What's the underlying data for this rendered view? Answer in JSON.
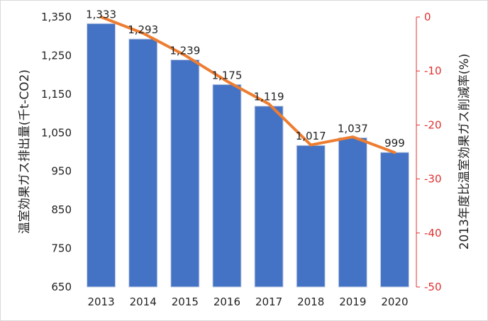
{
  "chart_data": {
    "type": "bar+line",
    "categories": [
      "2013",
      "2014",
      "2015",
      "2016",
      "2017",
      "2018",
      "2019",
      "2020"
    ],
    "series": [
      {
        "type": "bar",
        "axis": "left",
        "values": [
          1333,
          1293,
          1239,
          1175,
          1119,
          1017,
          1037,
          999
        ],
        "data_labels": [
          "1,333",
          "1,293",
          "1,239",
          "1,175",
          "1,119",
          "1,017",
          "1,037",
          "999"
        ],
        "color": "#4472c4"
      },
      {
        "type": "line",
        "axis": "right",
        "values": [
          0,
          -3.0,
          -7.1,
          -11.9,
          -16.1,
          -23.7,
          -22.2,
          -25.1
        ],
        "color": "#ed7d31"
      }
    ],
    "ylabel": "温室効果ガス排出量(千t-CO2)",
    "ylim": [
      650,
      1350
    ],
    "yticks": [
      "650",
      "750",
      "850",
      "950",
      "1,050",
      "1,150",
      "1,250",
      "1,350"
    ],
    "y2label": "2013年度比温室効果ガス削減率(%)",
    "y2lim": [
      -50,
      0
    ],
    "y2ticks": [
      "0",
      "-10",
      "-20",
      "-30",
      "-40",
      "-50"
    ],
    "y2color": "#e03030",
    "grid": false,
    "legend": "none"
  }
}
